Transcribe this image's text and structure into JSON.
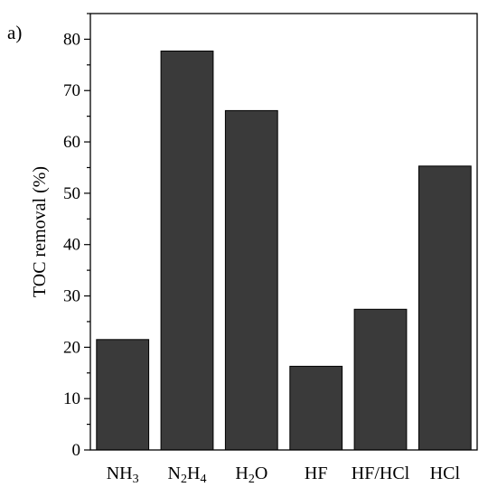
{
  "panel_label": "a)",
  "chart_data": {
    "type": "bar",
    "title": "",
    "xlabel": "",
    "ylabel": "TOC removal (%)",
    "categories": [
      {
        "label": "NH3",
        "parts": [
          {
            "t": "NH"
          },
          {
            "t": "3",
            "sub": true
          }
        ]
      },
      {
        "label": "N2H4",
        "parts": [
          {
            "t": "N"
          },
          {
            "t": "2",
            "sub": true
          },
          {
            "t": "H"
          },
          {
            "t": "4",
            "sub": true
          }
        ]
      },
      {
        "label": "H2O",
        "parts": [
          {
            "t": "H"
          },
          {
            "t": "2",
            "sub": true
          },
          {
            "t": "O"
          }
        ]
      },
      {
        "label": "HF",
        "parts": [
          {
            "t": "HF"
          }
        ]
      },
      {
        "label": "HF/HCl",
        "parts": [
          {
            "t": "HF/HCl"
          }
        ]
      },
      {
        "label": "HCl",
        "parts": [
          {
            "t": "HCl"
          }
        ]
      }
    ],
    "values": [
      21.5,
      77.7,
      66.1,
      16.3,
      27.4,
      55.3
    ],
    "ylim": [
      0,
      85
    ],
    "yticks": [
      0,
      10,
      20,
      30,
      40,
      50,
      60,
      70,
      80
    ],
    "bar_color": "#3a3a3a",
    "grid": false,
    "legend": "none"
  }
}
